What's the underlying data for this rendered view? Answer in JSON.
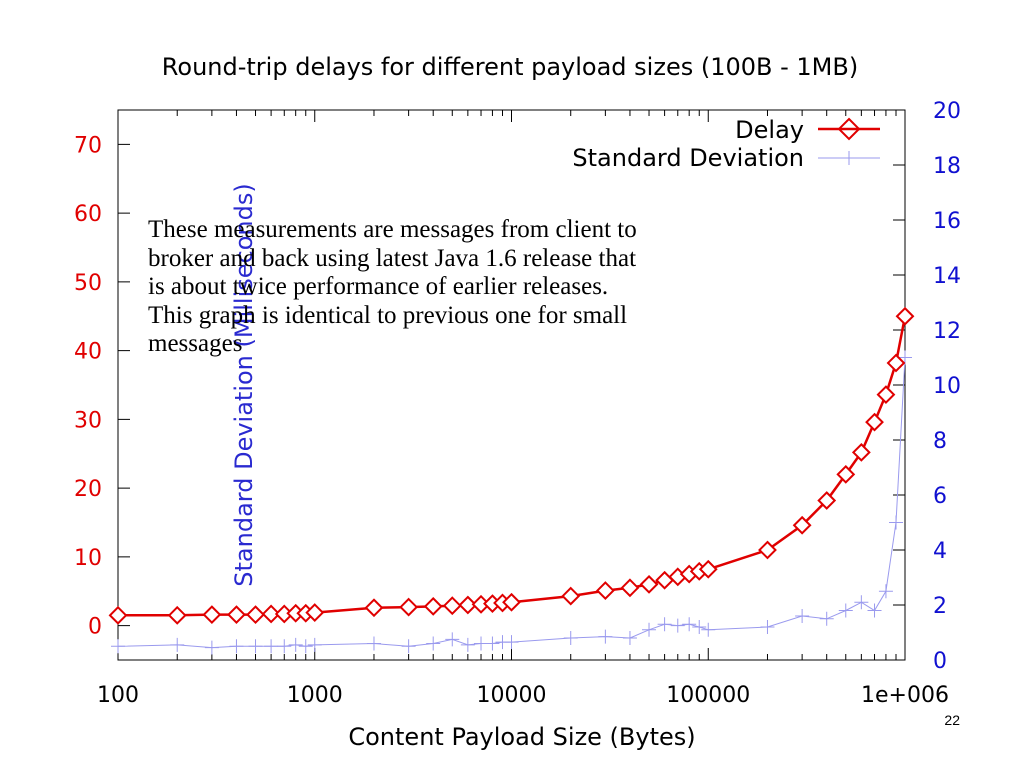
{
  "page": {
    "number": "22"
  },
  "note": {
    "lines": [
      "These measurements are messages from client to",
      "broker and back using latest Java 1.6 release that",
      "is about twice performance of earlier releases.",
      "This graph is identical to previous one for small",
      "messages"
    ]
  },
  "chart_data": {
    "type": "line",
    "title": "Round-trip delays for different payload sizes (100B - 1MB)",
    "xlabel": "Content Payload Size (Bytes)",
    "ylabel": "",
    "y2label": "Standard Deviation (Milliseconds)",
    "x_scale": "log",
    "xlim": [
      100,
      1000000
    ],
    "ylim": [
      -5,
      75
    ],
    "y2lim": [
      0,
      20
    ],
    "grid": false,
    "legend_position": "top-right",
    "x_ticks": [
      {
        "value": 100,
        "label": "100"
      },
      {
        "value": 1000,
        "label": "1000"
      },
      {
        "value": 10000,
        "label": "10000"
      },
      {
        "value": 100000,
        "label": "100000"
      },
      {
        "value": 1000000,
        "label": "1e+006"
      }
    ],
    "y_ticks": [
      {
        "value": 0,
        "label": "0"
      },
      {
        "value": 10,
        "label": "10"
      },
      {
        "value": 20,
        "label": "20"
      },
      {
        "value": 30,
        "label": "30"
      },
      {
        "value": 40,
        "label": "40"
      },
      {
        "value": 50,
        "label": "50"
      },
      {
        "value": 60,
        "label": "60"
      },
      {
        "value": 70,
        "label": "70"
      }
    ],
    "y2_ticks": [
      {
        "value": 0,
        "label": "0"
      },
      {
        "value": 2,
        "label": "2"
      },
      {
        "value": 4,
        "label": "4"
      },
      {
        "value": 6,
        "label": "6"
      },
      {
        "value": 8,
        "label": "8"
      },
      {
        "value": 10,
        "label": "10"
      },
      {
        "value": 12,
        "label": "12"
      },
      {
        "value": 14,
        "label": "14"
      },
      {
        "value": 16,
        "label": "16"
      },
      {
        "value": 18,
        "label": "18"
      },
      {
        "value": 20,
        "label": "20"
      }
    ],
    "series": [
      {
        "name": "Delay",
        "axis": "left",
        "color": "#e00000",
        "marker": "diamond",
        "x": [
          100,
          200,
          300,
          400,
          500,
          600,
          700,
          800,
          900,
          1000,
          2000,
          3000,
          4000,
          5000,
          6000,
          7000,
          8000,
          9000,
          10000,
          20000,
          30000,
          40000,
          50000,
          60000,
          70000,
          80000,
          90000,
          100000,
          200000,
          300000,
          400000,
          500000,
          600000,
          700000,
          800000,
          900000,
          1000000
        ],
        "y": [
          1.5,
          1.5,
          1.6,
          1.6,
          1.6,
          1.7,
          1.7,
          1.8,
          1.8,
          1.9,
          2.6,
          2.7,
          2.8,
          2.9,
          3.0,
          3.1,
          3.2,
          3.3,
          3.4,
          4.3,
          5.1,
          5.5,
          6.0,
          6.6,
          7.1,
          7.5,
          7.9,
          8.2,
          11.0,
          14.6,
          18.2,
          22.0,
          25.2,
          29.6,
          33.6,
          38.2,
          45.0
        ]
      },
      {
        "name": "Standard Deviation",
        "axis": "right",
        "color": "#9a9aee",
        "marker": "plus",
        "x": [
          100,
          200,
          300,
          400,
          500,
          600,
          700,
          800,
          900,
          1000,
          2000,
          3000,
          4000,
          5000,
          6000,
          7000,
          8000,
          9000,
          10000,
          20000,
          30000,
          40000,
          50000,
          60000,
          70000,
          80000,
          90000,
          100000,
          200000,
          300000,
          400000,
          500000,
          600000,
          700000,
          800000,
          900000,
          1000000
        ],
        "y": [
          0.5,
          0.55,
          0.45,
          0.5,
          0.5,
          0.5,
          0.5,
          0.55,
          0.5,
          0.55,
          0.6,
          0.5,
          0.6,
          0.75,
          0.55,
          0.6,
          0.6,
          0.65,
          0.65,
          0.8,
          0.85,
          0.8,
          1.1,
          1.3,
          1.25,
          1.3,
          1.2,
          1.1,
          1.2,
          1.6,
          1.5,
          1.8,
          2.1,
          1.8,
          2.5,
          5.0,
          11.0
        ]
      }
    ]
  }
}
